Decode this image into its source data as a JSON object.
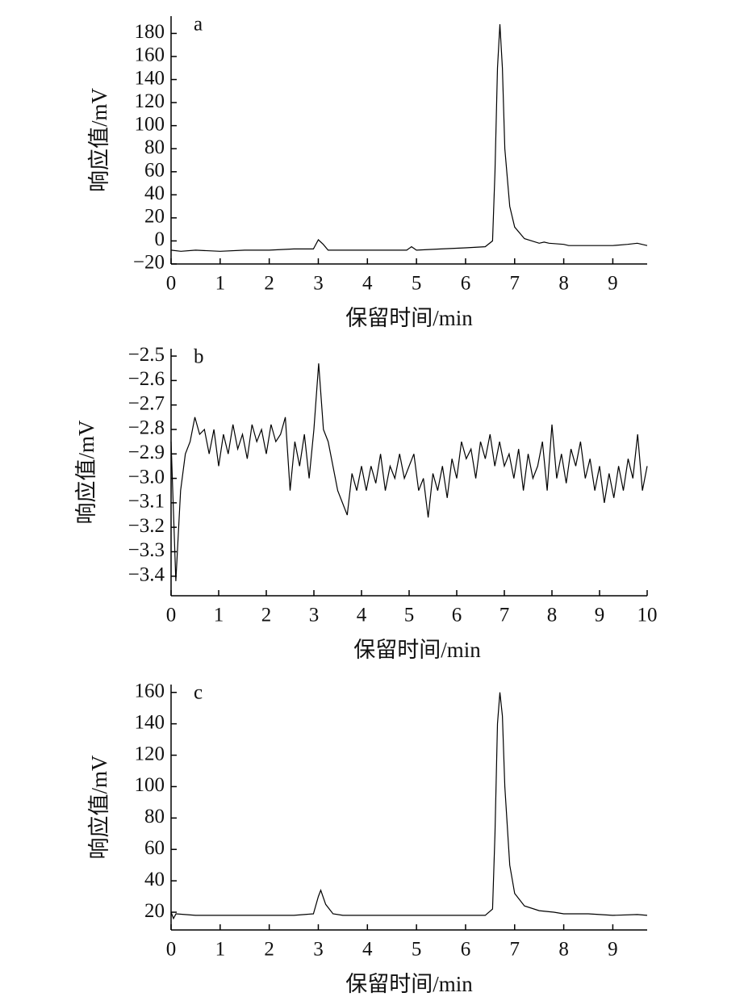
{
  "chart_data": [
    {
      "type": "line",
      "annotation": "a",
      "x_label": "保留时间/min",
      "y_label": "响应值/mV",
      "color": "#000000",
      "x": [
        0,
        0.2,
        0.5,
        1,
        1.5,
        2,
        2.5,
        2.9,
        3.0,
        3.1,
        3.2,
        4,
        4.8,
        4.9,
        5,
        5.5,
        6,
        6.4,
        6.55,
        6.6,
        6.65,
        6.7,
        6.75,
        6.8,
        6.9,
        7.0,
        7.2,
        7.5,
        7.6,
        7.7,
        8,
        8.1,
        8.5,
        9,
        9.3,
        9.5,
        9.7
      ],
      "values": [
        -8,
        -9,
        -8,
        -9,
        -8,
        -8,
        -7,
        -7,
        1,
        -3,
        -8,
        -8,
        -8,
        -5,
        -8,
        -7,
        -6,
        -5,
        0,
        60,
        150,
        188,
        150,
        80,
        30,
        12,
        2,
        -2,
        -1,
        -2,
        -3,
        -4,
        -4,
        -4,
        -3,
        -2,
        -4
      ],
      "xlim": [
        0,
        9.7
      ],
      "ylim": [
        -20,
        195
      ],
      "xticks": [
        0,
        1,
        2,
        3,
        4,
        5,
        6,
        7,
        8,
        9
      ],
      "yticks": [
        {
          "value": -20,
          "label": "−20"
        },
        0,
        20,
        40,
        60,
        80,
        100,
        120,
        140,
        160,
        180
      ]
    },
    {
      "type": "line",
      "annotation": "b",
      "x_label": "保留时间/min",
      "y_label": "响应值/mV",
      "color": "#000000",
      "x": [
        0,
        0.1,
        0.2,
        0.3,
        0.4,
        0.5,
        0.6,
        0.7,
        0.8,
        0.9,
        1.0,
        1.1,
        1.2,
        1.3,
        1.4,
        1.5,
        1.6,
        1.7,
        1.8,
        1.9,
        2.0,
        2.1,
        2.2,
        2.3,
        2.4,
        2.5,
        2.6,
        2.7,
        2.8,
        2.9,
        3.0,
        3.1,
        3.2,
        3.3,
        3.4,
        3.5,
        3.6,
        3.7,
        3.8,
        3.9,
        4.0,
        4.1,
        4.2,
        4.3,
        4.4,
        4.5,
        4.6,
        4.7,
        4.8,
        4.9,
        5.0,
        5.1,
        5.2,
        5.3,
        5.4,
        5.5,
        5.6,
        5.7,
        5.8,
        5.9,
        6.0,
        6.1,
        6.2,
        6.3,
        6.4,
        6.5,
        6.6,
        6.7,
        6.8,
        6.9,
        7.0,
        7.1,
        7.2,
        7.3,
        7.4,
        7.5,
        7.6,
        7.7,
        7.8,
        7.9,
        8.0,
        8.1,
        8.2,
        8.3,
        8.4,
        8.5,
        8.6,
        8.7,
        8.8,
        8.9,
        9.0,
        9.1,
        9.2,
        9.3,
        9.4,
        9.5,
        9.6,
        9.7,
        9.8,
        9.9,
        10
      ],
      "values": [
        -2.85,
        -3.42,
        -3.05,
        -2.9,
        -2.85,
        -2.75,
        -2.82,
        -2.8,
        -2.9,
        -2.8,
        -2.95,
        -2.82,
        -2.9,
        -2.78,
        -2.88,
        -2.82,
        -2.92,
        -2.78,
        -2.85,
        -2.8,
        -2.9,
        -2.78,
        -2.85,
        -2.82,
        -2.75,
        -3.05,
        -2.85,
        -2.95,
        -2.82,
        -3.0,
        -2.8,
        -2.53,
        -2.8,
        -2.85,
        -2.95,
        -3.05,
        -3.1,
        -3.15,
        -2.98,
        -3.05,
        -2.95,
        -3.05,
        -2.95,
        -3.02,
        -2.9,
        -3.05,
        -2.95,
        -3.0,
        -2.9,
        -3.0,
        -2.95,
        -2.9,
        -3.05,
        -3.0,
        -3.16,
        -2.98,
        -3.05,
        -2.95,
        -3.08,
        -2.92,
        -3.0,
        -2.85,
        -2.92,
        -2.88,
        -3.0,
        -2.85,
        -2.92,
        -2.82,
        -2.95,
        -2.85,
        -2.95,
        -2.9,
        -3.0,
        -2.88,
        -3.05,
        -2.9,
        -3.0,
        -2.95,
        -2.85,
        -3.05,
        -2.78,
        -3.0,
        -2.9,
        -3.02,
        -2.88,
        -2.95,
        -2.85,
        -3.0,
        -2.92,
        -3.05,
        -2.95,
        -3.1,
        -2.98,
        -3.08,
        -2.95,
        -3.05,
        -2.92,
        -3.0,
        -2.82,
        -3.05,
        -2.95
      ],
      "xlim": [
        0,
        10
      ],
      "ylim": [
        -3.48,
        -2.47
      ],
      "xticks": [
        0,
        1,
        2,
        3,
        4,
        5,
        6,
        7,
        8,
        9,
        10
      ],
      "yticks": [
        {
          "value": -3.4,
          "label": "−3.4"
        },
        {
          "value": -3.3,
          "label": "−3.3"
        },
        {
          "value": -3.2,
          "label": "−3.2"
        },
        {
          "value": -3.1,
          "label": "−3.1"
        },
        {
          "value": -3.0,
          "label": "−3.0"
        },
        {
          "value": -2.9,
          "label": "−2.9"
        },
        {
          "value": -2.8,
          "label": "−2.8"
        },
        {
          "value": -2.7,
          "label": "−2.7"
        },
        {
          "value": -2.6,
          "label": "−2.6"
        },
        {
          "value": -2.5,
          "label": "−2.5"
        }
      ]
    },
    {
      "type": "line",
      "annotation": "c",
      "x_label": "保留时间/min",
      "y_label": "响应值/mV",
      "color": "#000000",
      "x": [
        0,
        0.05,
        0.1,
        0.5,
        1,
        1.5,
        2,
        2.5,
        2.9,
        3.0,
        3.05,
        3.15,
        3.3,
        3.5,
        4,
        4.5,
        5,
        5.5,
        6,
        6.4,
        6.55,
        6.6,
        6.65,
        6.7,
        6.75,
        6.8,
        6.9,
        7.0,
        7.2,
        7.5,
        7.8,
        8,
        8.5,
        9,
        9.5,
        9.7
      ],
      "values": [
        20,
        16,
        19,
        18,
        18,
        18,
        18,
        18,
        19,
        30,
        34,
        25,
        19,
        18,
        18,
        18,
        18,
        18,
        18,
        18,
        22,
        70,
        140,
        160,
        145,
        100,
        50,
        32,
        24,
        21,
        20,
        19,
        19,
        18,
        18.5,
        18
      ],
      "xlim": [
        0,
        9.7
      ],
      "ylim": [
        8.7,
        165
      ],
      "xticks": [
        0,
        1,
        2,
        3,
        4,
        5,
        6,
        7,
        8,
        9
      ],
      "yticks": [
        20,
        40,
        60,
        80,
        100,
        120,
        140,
        160
      ]
    }
  ]
}
